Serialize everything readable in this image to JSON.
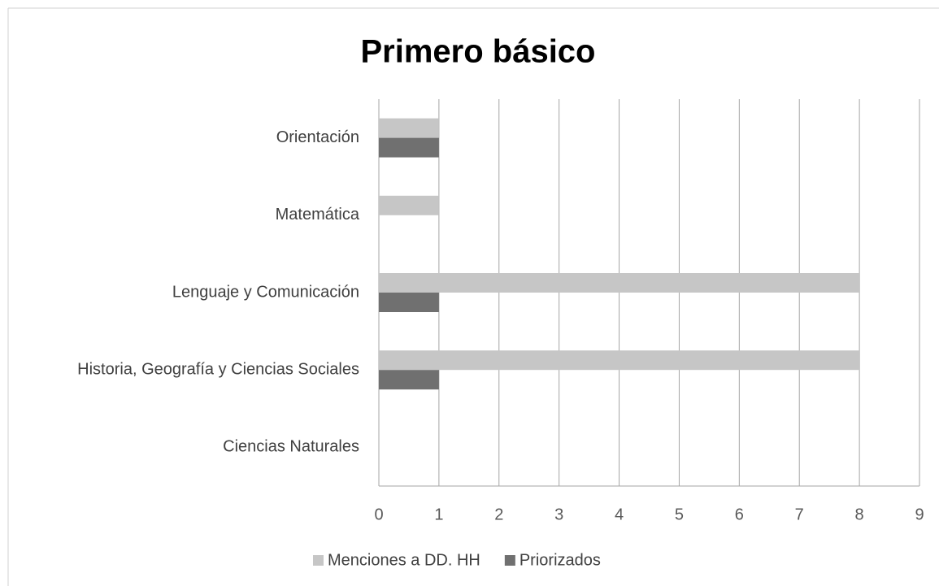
{
  "chart_data": {
    "type": "bar",
    "orientation": "horizontal",
    "title": "Primero  básico",
    "categories": [
      "Orientación",
      "Matemática",
      "Lenguaje y Comunicación",
      "Historia, Geografía y Ciencias Sociales",
      "Ciencias Naturales"
    ],
    "series": [
      {
        "name": "Menciones a DD. HH",
        "color": "#c6c6c6",
        "values": [
          1,
          1,
          8,
          8,
          0
        ]
      },
      {
        "name": "Priorizados",
        "color": "#707070",
        "values": [
          1,
          0,
          1,
          1,
          0
        ]
      }
    ],
    "xlim": [
      0,
      9
    ],
    "xticks": [
      0,
      1,
      2,
      3,
      4,
      5,
      6,
      7,
      8,
      9
    ],
    "grid": true,
    "legend": "bottom"
  }
}
